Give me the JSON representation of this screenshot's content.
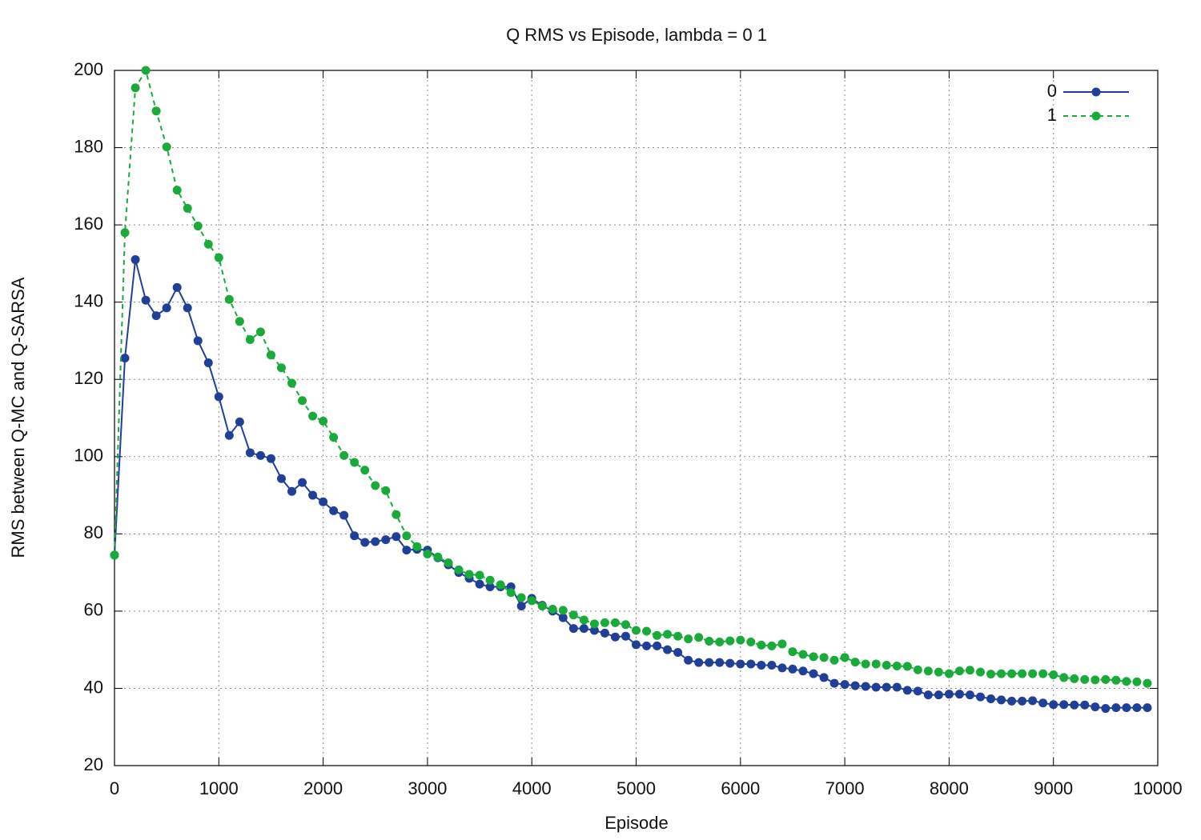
{
  "chart_data": {
    "type": "line",
    "title": "Q RMS vs Episode, lambda = 0  1",
    "x_label": "Episode",
    "y_label": "RMS between Q-MC and Q-SARSA",
    "x": [
      0,
      100,
      200,
      300,
      400,
      500,
      600,
      700,
      800,
      900,
      1000,
      1100,
      1200,
      1300,
      1400,
      1500,
      1600,
      1700,
      1800,
      1900,
      2000,
      2100,
      2200,
      2300,
      2400,
      2500,
      2600,
      2700,
      2800,
      2900,
      3000,
      3100,
      3200,
      3300,
      3400,
      3500,
      3600,
      3700,
      3800,
      3900,
      4000,
      4100,
      4200,
      4300,
      4400,
      4500,
      4600,
      4700,
      4800,
      4900,
      5000,
      5100,
      5200,
      5300,
      5400,
      5500,
      5600,
      5700,
      5800,
      5900,
      6000,
      6100,
      6200,
      6300,
      6400,
      6500,
      6600,
      6700,
      6800,
      6900,
      7000,
      7100,
      7200,
      7300,
      7400,
      7500,
      7600,
      7700,
      7800,
      7900,
      8000,
      8100,
      8200,
      8300,
      8400,
      8500,
      8600,
      8700,
      8800,
      8900,
      9000,
      9100,
      9200,
      9300,
      9400,
      9500,
      9600,
      9700,
      9800,
      9900
    ],
    "series": [
      {
        "name": "0",
        "color": "#1f3f99",
        "line_style": "solid",
        "values": [
          74.5,
          125.5,
          151,
          140.5,
          136.5,
          138.5,
          143.8,
          138.5,
          130,
          124.3,
          115.5,
          105.5,
          109,
          101,
          100.3,
          99.5,
          94.3,
          91,
          93.3,
          90,
          88.3,
          86,
          84.8,
          79.5,
          77.8,
          78,
          78.5,
          79.3,
          75.8,
          76,
          75.8,
          73.8,
          72,
          70,
          68.5,
          67,
          66.3,
          66.3,
          66.3,
          61.3,
          63.3,
          61.5,
          60,
          58.3,
          55.5,
          55.5,
          55,
          54.3,
          53.3,
          53.5,
          51.3,
          51,
          51,
          50,
          49.3,
          47.3,
          46.7,
          46.7,
          46.7,
          46.5,
          46.3,
          46.3,
          46,
          46,
          45.3,
          45,
          44.5,
          43.8,
          42.8,
          41.3,
          41,
          40.7,
          40.5,
          40.3,
          40.3,
          40.3,
          39.5,
          39.3,
          38.3,
          38.3,
          38.5,
          38.5,
          38.3,
          37.8,
          37.3,
          37,
          36.7,
          36.7,
          36.8,
          36.2,
          35.8,
          35.8,
          35.7,
          35.7,
          35.2,
          34.8,
          35,
          35,
          35,
          35
        ]
      },
      {
        "name": "1",
        "color": "#1aaa3a",
        "line_style": "dashed",
        "values": [
          74.5,
          158,
          195.5,
          200,
          189.5,
          180.2,
          169,
          164.3,
          159.7,
          155,
          151.5,
          140.7,
          135,
          130.3,
          132.3,
          126.3,
          123,
          119,
          114.5,
          110.5,
          109.2,
          105,
          100.3,
          98.5,
          96.5,
          92.5,
          91.2,
          85,
          79.5,
          76.7,
          74.8,
          74,
          72.5,
          70.7,
          69.5,
          69.3,
          68,
          66.8,
          64.8,
          63.5,
          62.7,
          61.3,
          60.5,
          60.2,
          59,
          57.7,
          56.7,
          57,
          57,
          56.5,
          55,
          54.8,
          53.7,
          54,
          53.5,
          52.8,
          53.2,
          52.2,
          52,
          52.3,
          52.5,
          52,
          51.2,
          51,
          51.5,
          49.5,
          48.8,
          48.2,
          48,
          47.3,
          48,
          46.8,
          46.3,
          46.3,
          46,
          45.8,
          45.7,
          44.8,
          44.5,
          44.2,
          43.8,
          44.5,
          44.7,
          44.2,
          43.7,
          43.8,
          43.8,
          43.8,
          43.8,
          43.8,
          43.5,
          42.8,
          42.5,
          42.3,
          42.2,
          42.3,
          42.1,
          41.8,
          41.7,
          41.3
        ]
      }
    ],
    "xlim": [
      0,
      10000
    ],
    "xticks": [
      0,
      1000,
      2000,
      3000,
      4000,
      5000,
      6000,
      7000,
      8000,
      9000,
      10000
    ],
    "ylim": [
      20,
      200
    ],
    "yticks": [
      20,
      40,
      60,
      80,
      100,
      120,
      140,
      160,
      180,
      200
    ],
    "grid": true,
    "legend": "top-right"
  }
}
